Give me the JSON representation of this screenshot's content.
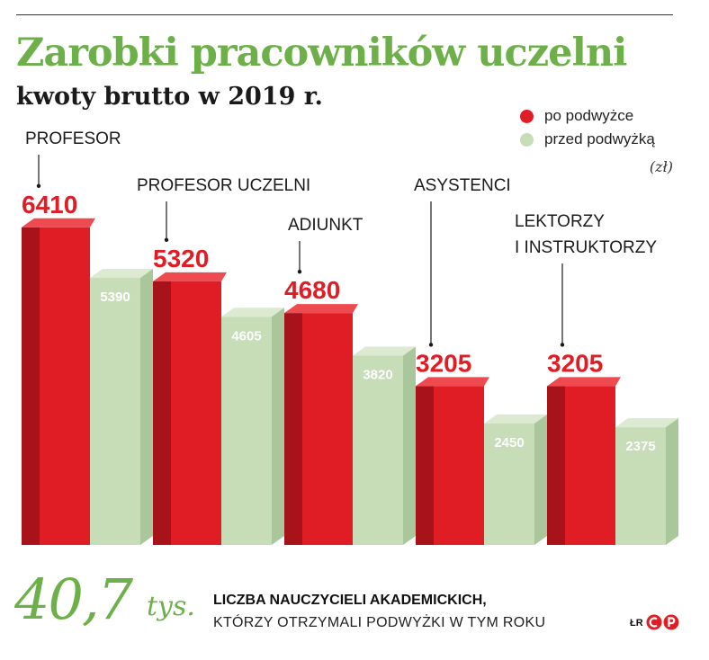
{
  "title": "Zarobki pracowników uczelni",
  "subtitle": "kwoty brutto w 2019 r.",
  "legend": {
    "after": {
      "label": "po podwyżce",
      "color": "#e01d25"
    },
    "before": {
      "label": "przed podwyżką",
      "color": "#c6ddb8"
    }
  },
  "unit": "(zł)",
  "chart_data": {
    "type": "bar",
    "categories": [
      "PROFESOR",
      "PROFESOR UCZELNI",
      "ADIUNKT",
      "ASYSTENCI",
      "LEKTORZY\nI INSTRUKTORZY"
    ],
    "series": [
      {
        "name": "po podwyżce",
        "values": [
          6410,
          5320,
          4680,
          3205,
          3205
        ],
        "color": "#e01d25"
      },
      {
        "name": "przed podwyżką",
        "values": [
          5390,
          4605,
          3820,
          2450,
          2375
        ],
        "color": "#c6ddb8"
      }
    ]
  },
  "footer": {
    "big_number": "40,7",
    "big_unit": "tys.",
    "line1": "LICZBA NAUCZYCIELI AKADEMICKICH,",
    "line2": "KTÓRZY OTRZYMALI PODWYŻKI W TYM ROKU",
    "credit": "ŁR"
  }
}
